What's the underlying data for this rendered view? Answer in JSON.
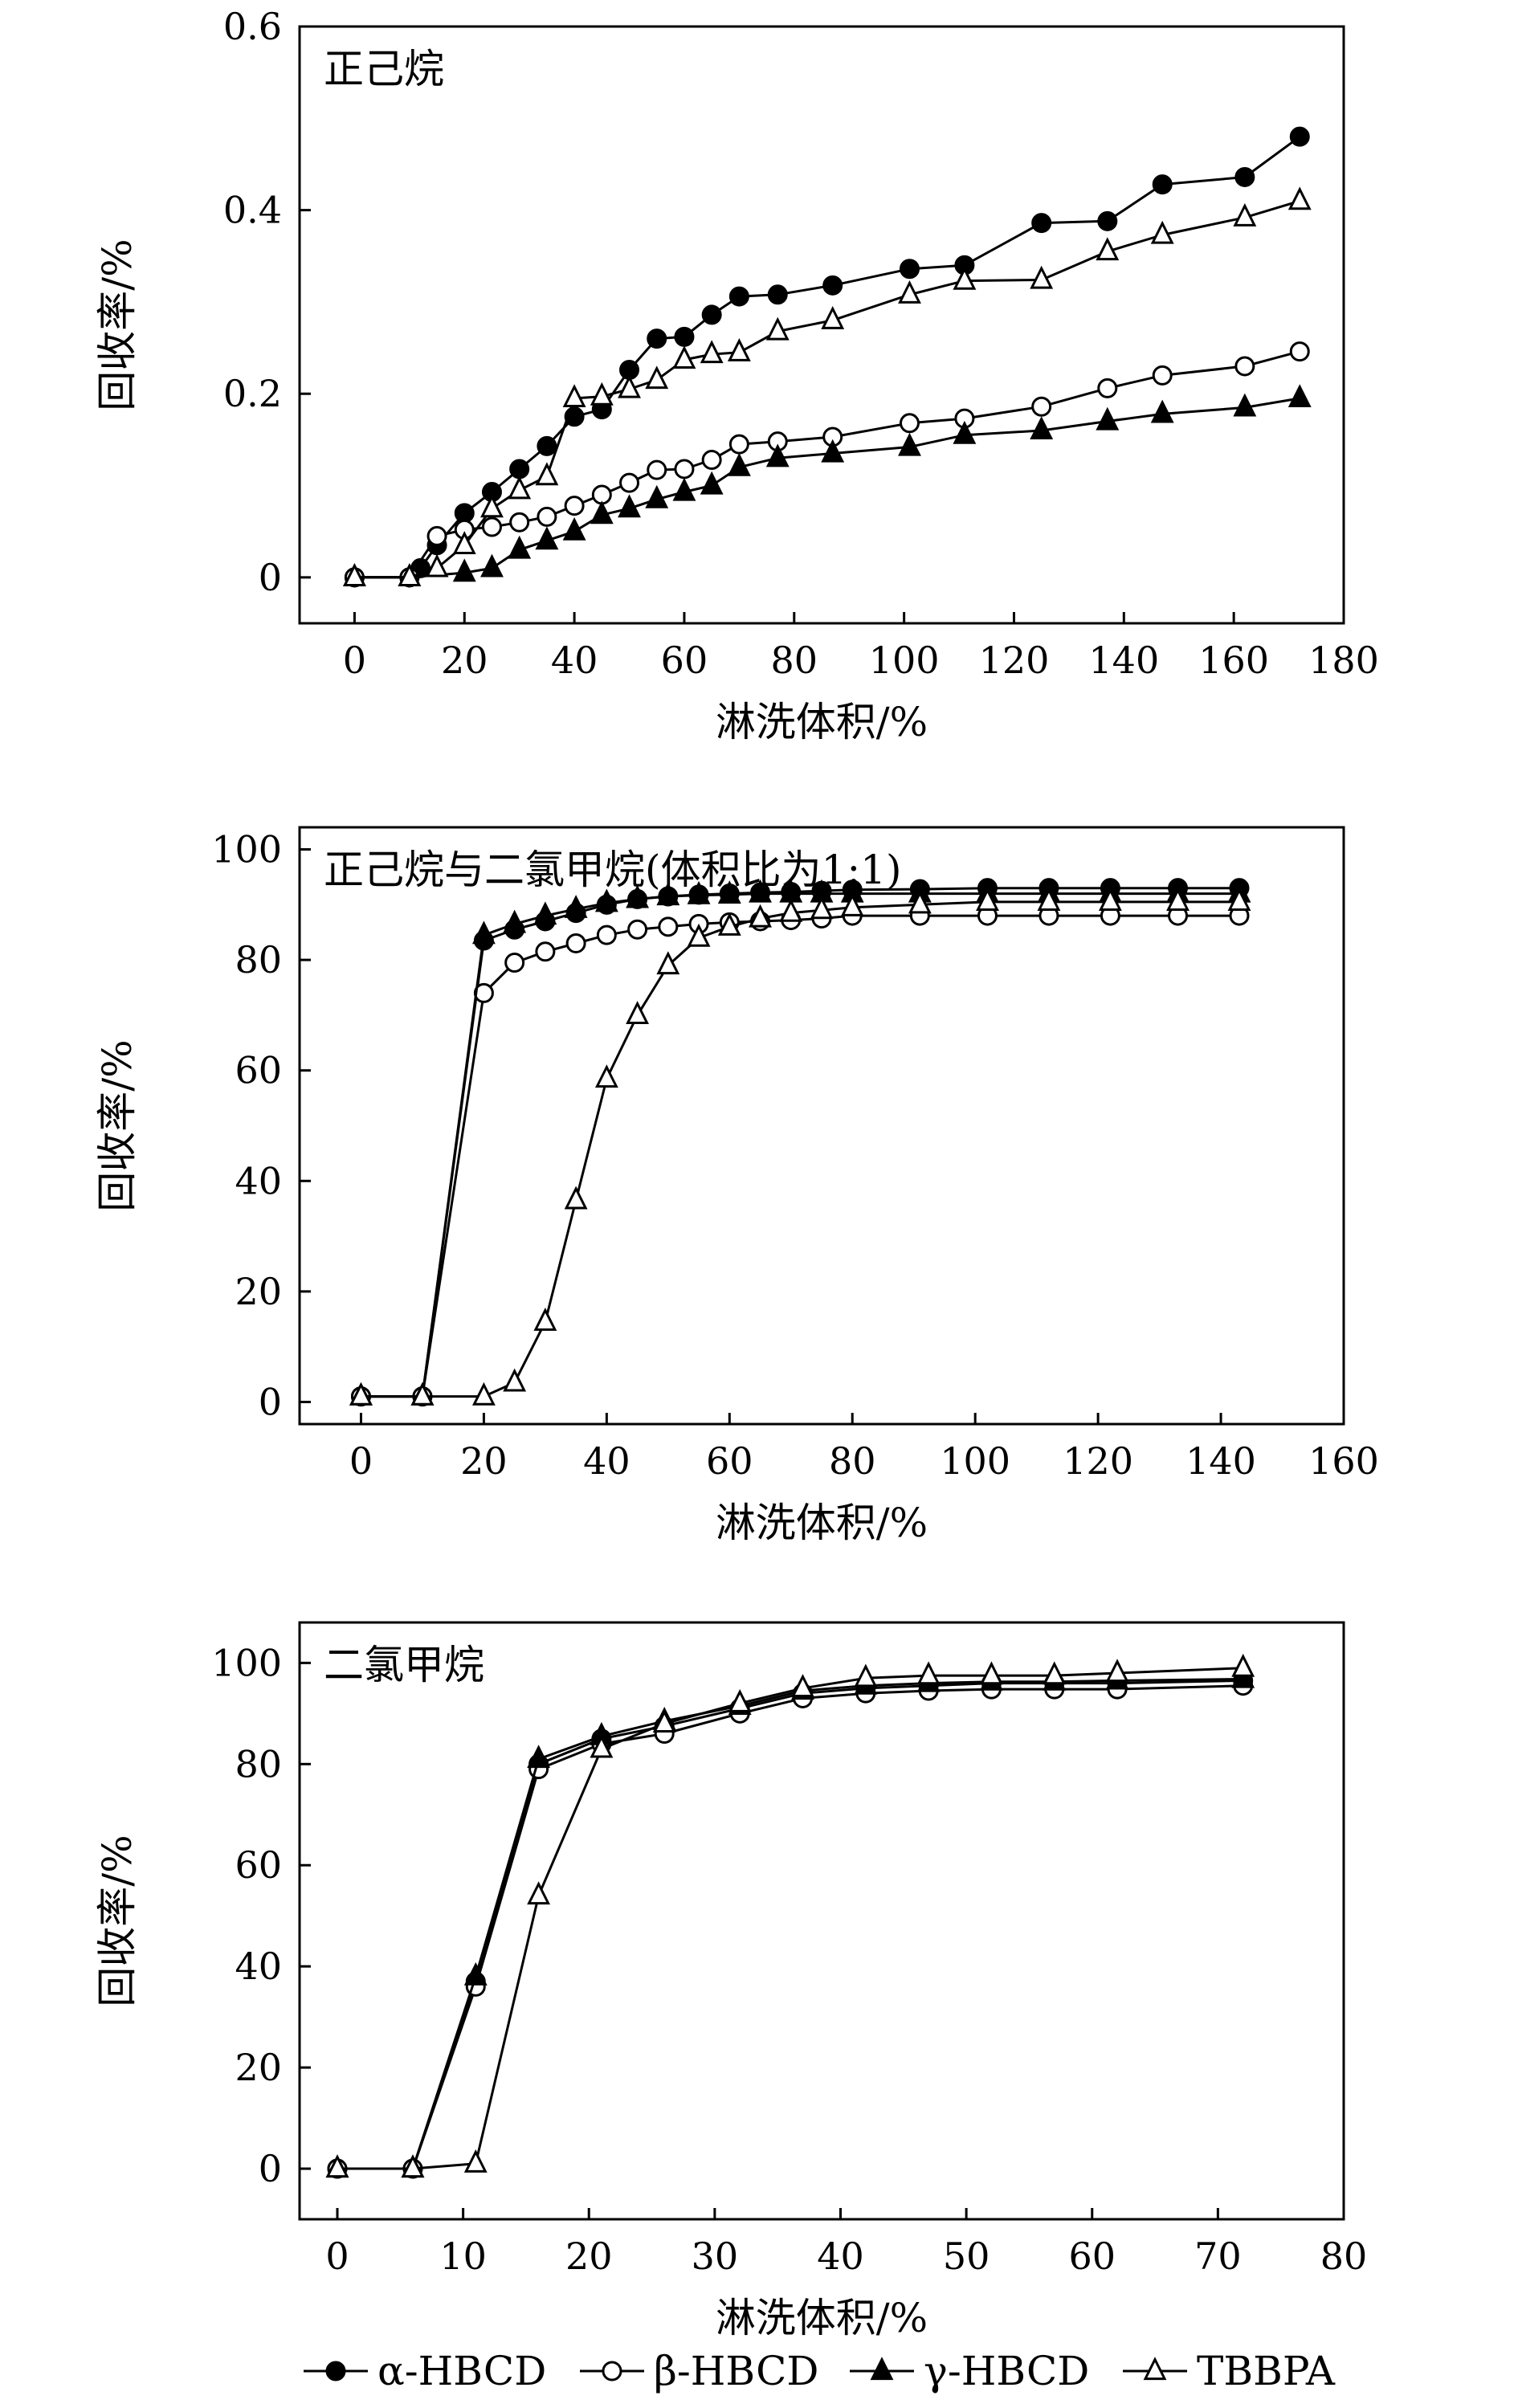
{
  "legend": [
    {
      "name": "α-HBCD",
      "marker": "circle-filled"
    },
    {
      "name": "β-HBCD",
      "marker": "circle-open"
    },
    {
      "name": "γ-HBCD",
      "marker": "triangle-filled"
    },
    {
      "name": "TBBPA",
      "marker": "triangle-open"
    }
  ],
  "colors": {
    "line": "#000000",
    "background": "#ffffff"
  },
  "chart_data": [
    {
      "type": "line",
      "title": "正己烷",
      "xlabel": "淋洗体积/%",
      "ylabel": "回收率/%",
      "xlim": [
        -10,
        180
      ],
      "ylim": [
        -0.05,
        0.6
      ],
      "xticks": [
        0,
        20,
        40,
        60,
        80,
        100,
        120,
        140,
        160,
        180
      ],
      "yticks": [
        0,
        0.2,
        0.4,
        0.6
      ],
      "ytick_labels": [
        "0",
        "0.2",
        "0.4",
        "0.6"
      ],
      "grid": false,
      "series": [
        {
          "name": "α-HBCD",
          "marker": "circle-filled",
          "x": [
            0,
            10,
            12,
            15,
            20,
            25,
            30,
            35,
            40,
            45,
            50,
            55,
            60,
            65,
            70,
            77,
            87,
            101,
            111,
            125,
            137,
            147,
            162,
            172
          ],
          "y": [
            0,
            0,
            0.01,
            0.035,
            0.07,
            0.093,
            0.118,
            0.143,
            0.175,
            0.183,
            0.226,
            0.26,
            0.262,
            0.286,
            0.306,
            0.308,
            0.318,
            0.336,
            0.34,
            0.386,
            0.388,
            0.428,
            0.436,
            0.48
          ]
        },
        {
          "name": "β-HBCD",
          "marker": "circle-open",
          "x": [
            0,
            10,
            15,
            20,
            25,
            30,
            35,
            40,
            45,
            50,
            55,
            60,
            65,
            70,
            77,
            87,
            101,
            111,
            125,
            137,
            147,
            162,
            172
          ],
          "y": [
            0,
            0,
            0.045,
            0.052,
            0.055,
            0.06,
            0.066,
            0.078,
            0.09,
            0.103,
            0.117,
            0.118,
            0.128,
            0.145,
            0.148,
            0.153,
            0.168,
            0.173,
            0.186,
            0.206,
            0.22,
            0.23,
            0.246
          ]
        },
        {
          "name": "γ-HBCD",
          "marker": "triangle-filled",
          "x": [
            0,
            10,
            20,
            25,
            30,
            35,
            40,
            45,
            50,
            55,
            60,
            65,
            70,
            77,
            87,
            101,
            111,
            125,
            137,
            147,
            162,
            172
          ],
          "y": [
            0,
            0,
            0.005,
            0.01,
            0.03,
            0.04,
            0.05,
            0.068,
            0.075,
            0.085,
            0.093,
            0.1,
            0.12,
            0.13,
            0.135,
            0.142,
            0.155,
            0.16,
            0.17,
            0.178,
            0.185,
            0.195
          ]
        },
        {
          "name": "TBBPA",
          "marker": "triangle-open",
          "x": [
            0,
            10,
            15,
            20,
            25,
            30,
            35,
            40,
            45,
            50,
            55,
            60,
            65,
            70,
            77,
            87,
            101,
            111,
            125,
            137,
            147,
            162,
            172
          ],
          "y": [
            0,
            0,
            0.01,
            0.035,
            0.075,
            0.095,
            0.11,
            0.195,
            0.197,
            0.205,
            0.215,
            0.237,
            0.243,
            0.245,
            0.268,
            0.28,
            0.308,
            0.323,
            0.324,
            0.355,
            0.373,
            0.392,
            0.41
          ]
        }
      ]
    },
    {
      "type": "line",
      "title": "正己烷与二氯甲烷(体积比为1:1)",
      "xlabel": "淋洗体积/%",
      "ylabel": "回收率/%",
      "xlim": [
        -10,
        160
      ],
      "ylim": [
        -4,
        104
      ],
      "xticks": [
        0,
        20,
        40,
        60,
        80,
        100,
        120,
        140,
        160
      ],
      "yticks": [
        0,
        20,
        40,
        60,
        80,
        100
      ],
      "ytick_labels": [
        "0",
        "20",
        "40",
        "60",
        "80",
        "100"
      ],
      "grid": false,
      "series": [
        {
          "name": "α-HBCD",
          "marker": "circle-filled",
          "x": [
            0,
            10,
            20,
            25,
            30,
            35,
            40,
            45,
            50,
            55,
            60,
            65,
            70,
            75,
            80,
            91,
            102,
            112,
            122,
            133,
            143
          ],
          "y": [
            1,
            1,
            83.5,
            85.5,
            87,
            88.5,
            90,
            91,
            91.5,
            91.8,
            92,
            92.2,
            92.3,
            92.5,
            92.7,
            92.8,
            93,
            93,
            93,
            93,
            93
          ]
        },
        {
          "name": "β-HBCD",
          "marker": "circle-open",
          "x": [
            0,
            10,
            20,
            25,
            30,
            35,
            40,
            45,
            50,
            55,
            60,
            65,
            70,
            75,
            80,
            91,
            102,
            112,
            122,
            133,
            143
          ],
          "y": [
            1,
            1,
            74,
            79.5,
            81.5,
            83,
            84.5,
            85.5,
            86,
            86.5,
            86.8,
            87,
            87.2,
            87.5,
            88,
            88,
            88,
            88,
            88,
            88,
            88
          ]
        },
        {
          "name": "γ-HBCD",
          "marker": "triangle-filled",
          "x": [
            0,
            10,
            20,
            25,
            30,
            35,
            40,
            45,
            50,
            55,
            60,
            65,
            70,
            75,
            80,
            91,
            102,
            112,
            122,
            133,
            143
          ],
          "y": [
            1,
            1,
            84.5,
            86.5,
            88,
            89.2,
            90.3,
            91,
            91.5,
            91.7,
            91.8,
            92,
            92,
            92,
            92,
            92,
            92,
            92,
            92,
            92,
            92
          ]
        },
        {
          "name": "TBBPA",
          "marker": "triangle-open",
          "x": [
            0,
            10,
            20,
            25,
            30,
            35,
            40,
            45,
            50,
            55,
            60,
            65,
            70,
            75,
            80,
            91,
            102,
            112,
            122,
            133,
            143
          ],
          "y": [
            1,
            1,
            1,
            3.5,
            14.5,
            36.5,
            58.5,
            70,
            79,
            84,
            86,
            87.5,
            88.5,
            89,
            89.5,
            90,
            90.5,
            90.5,
            90.5,
            90.5,
            90.5
          ]
        }
      ]
    },
    {
      "type": "line",
      "title": "二氯甲烷",
      "xlabel": "淋洗体积/%",
      "ylabel": "回收率/%",
      "xlim": [
        -3,
        80
      ],
      "ylim": [
        -10,
        108
      ],
      "xticks": [
        0,
        10,
        20,
        30,
        40,
        50,
        60,
        70,
        80
      ],
      "yticks": [
        0,
        20,
        40,
        60,
        80,
        100
      ],
      "ytick_labels": [
        "0",
        "20",
        "40",
        "60",
        "80",
        "100"
      ],
      "grid": false,
      "series": [
        {
          "name": "α-HBCD",
          "marker": "circle-filled",
          "x": [
            0,
            6,
            11,
            16,
            21,
            26,
            32,
            37,
            42,
            47,
            52,
            57,
            62,
            72
          ],
          "y": [
            0,
            0,
            37,
            80,
            85,
            87.5,
            91,
            94,
            95,
            95.5,
            96,
            96,
            96,
            96.5
          ]
        },
        {
          "name": "β-HBCD",
          "marker": "circle-open",
          "x": [
            0,
            6,
            11,
            16,
            21,
            26,
            32,
            37,
            42,
            47,
            52,
            57,
            62,
            72
          ],
          "y": [
            0,
            0,
            36,
            79,
            84,
            86,
            90,
            93,
            94,
            94.5,
            94.8,
            94.8,
            94.8,
            95.5
          ]
        },
        {
          "name": "γ-HBCD",
          "marker": "triangle-filled",
          "x": [
            0,
            6,
            11,
            16,
            21,
            26,
            32,
            37,
            42,
            47,
            52,
            57,
            62,
            72
          ],
          "y": [
            0,
            0,
            38,
            81,
            85.5,
            88.5,
            91.5,
            94.5,
            95.5,
            96,
            96.3,
            96.3,
            96.5,
            96.8
          ]
        },
        {
          "name": "TBBPA",
          "marker": "triangle-open",
          "x": [
            0,
            6,
            11,
            16,
            21,
            26,
            32,
            37,
            42,
            47,
            52,
            57,
            62,
            72
          ],
          "y": [
            0,
            0,
            1,
            54,
            83,
            88,
            92,
            95,
            97,
            97.5,
            97.5,
            97.5,
            98,
            99
          ]
        }
      ]
    }
  ]
}
